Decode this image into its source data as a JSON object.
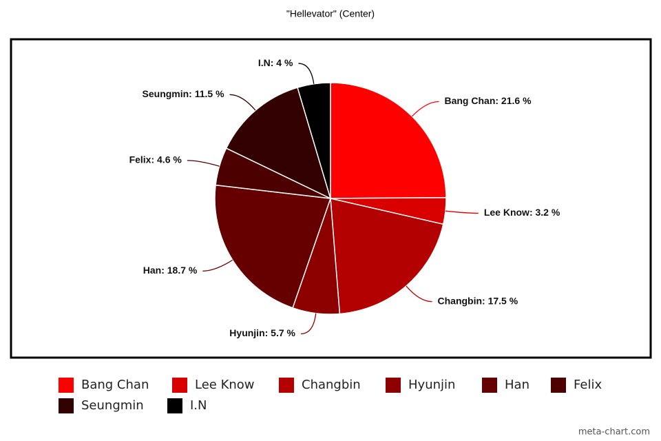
{
  "chart_data": {
    "type": "pie",
    "title": "\"Hellevator\" (Center)",
    "categories": [
      "Bang Chan",
      "Lee Know",
      "Changbin",
      "Hyunjin",
      "Han",
      "Felix",
      "Seungmin",
      "I.N"
    ],
    "values": [
      21.6,
      3.2,
      17.5,
      5.7,
      18.7,
      4.6,
      11.5,
      4
    ],
    "value_labels": [
      "Bang Chan: 21.6 %",
      "Lee Know: 3.2 %",
      "Changbin: 17.5 %",
      "Hyunjin: 5.7 %",
      "Han: 18.7 %",
      "Felix: 4.6 %",
      "Seungmin: 11.5 %",
      "I.N: 4 %"
    ],
    "colors": [
      "#ff0000",
      "#d90000",
      "#b30000",
      "#8c0000",
      "#660000",
      "#4d0000",
      "#330000",
      "#000000"
    ],
    "legend": "bottom",
    "footer": "meta-chart.com"
  }
}
